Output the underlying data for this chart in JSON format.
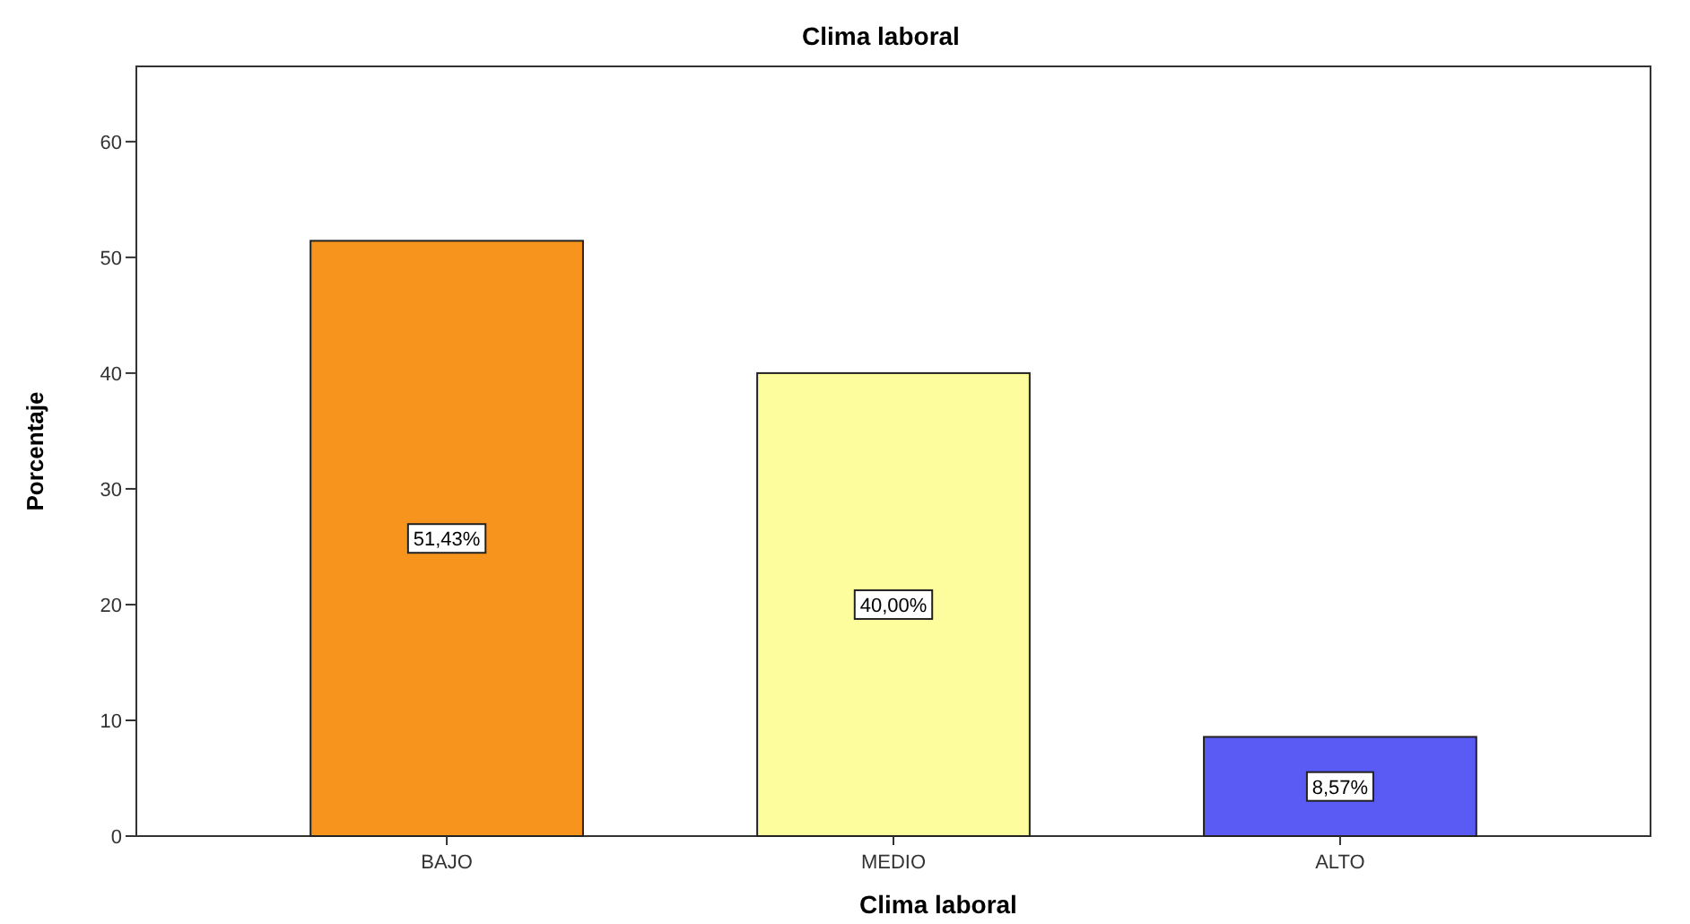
{
  "chart_data": {
    "type": "bar",
    "title": "Clima laboral",
    "xlabel": "Clima laboral",
    "ylabel": "Porcentaje",
    "categories": [
      "BAJO",
      "MEDIO",
      "ALTO"
    ],
    "values": [
      51.43,
      40.0,
      8.57
    ],
    "colors": [
      "#f7941d",
      "#fdfd9e",
      "#5a5af5"
    ],
    "value_labels": [
      "51,43%",
      "40,00%",
      "8,57%"
    ],
    "ylim": [
      0,
      66.5
    ],
    "yticks": [
      0,
      10,
      20,
      30,
      40,
      50,
      60
    ],
    "grid": false
  }
}
